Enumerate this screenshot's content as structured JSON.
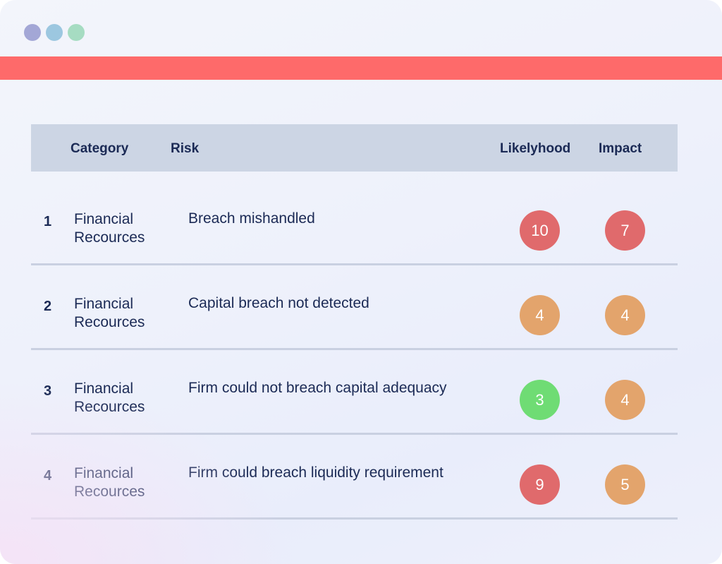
{
  "window": {
    "controls": [
      "window-dot-1",
      "window-dot-2",
      "window-dot-3"
    ]
  },
  "colors": {
    "accent_bar": "#fe6a6a",
    "header_bg": "#ccd5e4",
    "text": "#1b2a55",
    "score_high": "#e06a6c",
    "score_medium": "#e3a46c",
    "score_low": "#6fdc74"
  },
  "table": {
    "headers": {
      "category": "Category",
      "risk": "Risk",
      "likelihood": "Likelyhood",
      "impact": "Impact"
    },
    "rows": [
      {
        "num": "1",
        "category": "Financial Recources",
        "risk": "Breach mishandled",
        "likelihood": "10",
        "likelihood_level": "high",
        "impact": "7",
        "impact_level": "high"
      },
      {
        "num": "2",
        "category": "Financial Recources",
        "risk": "Capital breach not detected",
        "likelihood": "4",
        "likelihood_level": "medium",
        "impact": "4",
        "impact_level": "medium"
      },
      {
        "num": "3",
        "category": "Financial Recources",
        "risk": "Firm could not breach capital adequacy",
        "likelihood": "3",
        "likelihood_level": "low",
        "impact": "4",
        "impact_level": "medium"
      },
      {
        "num": "4",
        "category": "Financial Recources",
        "risk": "Firm could breach liquidity requirement",
        "likelihood": "9",
        "likelihood_level": "high",
        "impact": "5",
        "impact_level": "medium"
      }
    ]
  }
}
